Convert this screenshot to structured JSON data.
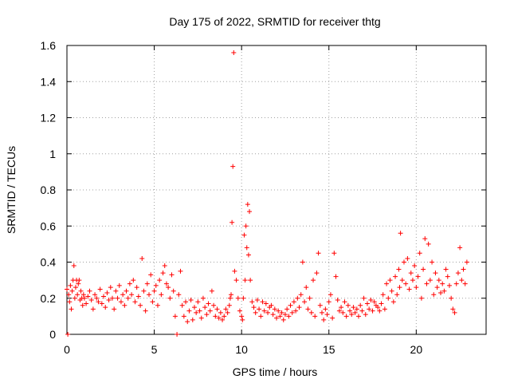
{
  "chart_data": {
    "type": "scatter",
    "title": "Day 175 of 2022, SRMTID for receiver thtg",
    "xlabel": "GPS time / hours",
    "ylabel": "SRMTID / TECUs",
    "xlim": [
      0,
      24
    ],
    "ylim": [
      0,
      1.6
    ],
    "xticks": [
      {
        "value": 0,
        "label": "0"
      },
      {
        "value": 5,
        "label": "5"
      },
      {
        "value": 10,
        "label": "10"
      },
      {
        "value": 15,
        "label": "15"
      },
      {
        "value": 20,
        "label": "20"
      }
    ],
    "yticks": [
      {
        "value": 0,
        "label": "0"
      },
      {
        "value": 0.2,
        "label": "0.2"
      },
      {
        "value": 0.4,
        "label": "0.4"
      },
      {
        "value": 0.6,
        "label": "0.6"
      },
      {
        "value": 0.8,
        "label": "0.8"
      },
      {
        "value": 1.0,
        "label": "1"
      },
      {
        "value": 1.2,
        "label": "1.2"
      },
      {
        "value": 1.4,
        "label": "1.4"
      },
      {
        "value": 1.6,
        "label": "1.6"
      }
    ],
    "grid": true,
    "marker": "+",
    "series": [
      {
        "name": "SRMTID",
        "color": "#ff0000",
        "x": [
          0.0,
          0.05,
          0.1,
          0.15,
          0.2,
          0.25,
          0.3,
          0.35,
          0.4,
          0.45,
          0.5,
          0.55,
          0.6,
          0.65,
          0.7,
          0.75,
          0.8,
          0.85,
          0.9,
          0.95,
          1.0,
          1.1,
          1.2,
          1.3,
          1.4,
          1.5,
          1.6,
          1.7,
          1.8,
          1.9,
          2.0,
          2.1,
          2.2,
          2.3,
          2.4,
          2.5,
          2.6,
          2.7,
          2.8,
          2.9,
          3.0,
          3.1,
          3.2,
          3.3,
          3.4,
          3.5,
          3.6,
          3.7,
          3.8,
          3.9,
          4.0,
          4.1,
          4.2,
          4.3,
          4.4,
          4.5,
          4.6,
          4.7,
          4.8,
          4.9,
          5.0,
          5.1,
          5.2,
          5.3,
          5.4,
          5.5,
          5.6,
          5.7,
          5.8,
          5.9,
          6.0,
          6.1,
          6.2,
          6.3,
          6.4,
          6.5,
          6.6,
          6.7,
          6.8,
          6.9,
          7.0,
          7.1,
          7.2,
          7.3,
          7.4,
          7.5,
          7.6,
          7.7,
          7.8,
          7.9,
          8.0,
          8.1,
          8.2,
          8.3,
          8.4,
          8.5,
          8.6,
          8.7,
          8.8,
          8.9,
          9.0,
          9.1,
          9.2,
          9.3,
          9.35,
          9.4,
          9.45,
          9.5,
          9.55,
          9.6,
          9.7,
          9.8,
          9.9,
          10.0,
          10.05,
          10.1,
          10.15,
          10.2,
          10.25,
          10.3,
          10.35,
          10.4,
          10.45,
          10.5,
          10.6,
          10.7,
          10.8,
          10.9,
          11.0,
          11.1,
          11.2,
          11.3,
          11.4,
          11.5,
          11.6,
          11.7,
          11.8,
          11.9,
          12.0,
          12.1,
          12.2,
          12.3,
          12.4,
          12.5,
          12.6,
          12.7,
          12.8,
          12.9,
          13.0,
          13.1,
          13.2,
          13.3,
          13.4,
          13.5,
          13.6,
          13.7,
          13.8,
          13.9,
          14.0,
          14.1,
          14.2,
          14.3,
          14.4,
          14.5,
          14.6,
          14.7,
          14.8,
          14.9,
          15.0,
          15.1,
          15.2,
          15.3,
          15.4,
          15.5,
          15.6,
          15.7,
          15.8,
          15.9,
          16.0,
          16.1,
          16.2,
          16.3,
          16.4,
          16.5,
          16.6,
          16.7,
          16.8,
          16.9,
          17.0,
          17.1,
          17.2,
          17.3,
          17.4,
          17.5,
          17.6,
          17.7,
          17.8,
          17.9,
          18.0,
          18.1,
          18.2,
          18.3,
          18.4,
          18.5,
          18.6,
          18.7,
          18.8,
          18.9,
          19.0,
          19.05,
          19.1,
          19.2,
          19.3,
          19.4,
          19.5,
          19.6,
          19.7,
          19.8,
          19.9,
          20.0,
          20.1,
          20.2,
          20.3,
          20.4,
          20.5,
          20.6,
          20.7,
          20.8,
          20.9,
          21.0,
          21.1,
          21.2,
          21.3,
          21.4,
          21.5,
          21.6,
          21.7,
          21.8,
          21.9,
          22.0,
          22.1,
          22.2,
          22.3,
          22.4,
          22.5,
          22.6,
          22.7,
          22.8,
          22.9
        ],
        "y": [
          0.25,
          0.0,
          0.22,
          0.18,
          0.27,
          0.14,
          0.24,
          0.3,
          0.38,
          0.2,
          0.26,
          0.3,
          0.22,
          0.28,
          0.3,
          0.19,
          0.24,
          0.2,
          0.16,
          0.22,
          0.2,
          0.17,
          0.21,
          0.24,
          0.19,
          0.14,
          0.22,
          0.2,
          0.18,
          0.25,
          0.17,
          0.21,
          0.15,
          0.23,
          0.19,
          0.26,
          0.2,
          0.14,
          0.24,
          0.2,
          0.27,
          0.18,
          0.22,
          0.16,
          0.24,
          0.2,
          0.28,
          0.22,
          0.3,
          0.18,
          0.26,
          0.21,
          0.16,
          0.42,
          0.24,
          0.13,
          0.28,
          0.22,
          0.33,
          0.18,
          0.24,
          0.27,
          0.16,
          0.3,
          0.22,
          0.34,
          0.38,
          0.28,
          0.26,
          0.2,
          0.33,
          0.24,
          0.1,
          0.0,
          0.22,
          0.35,
          0.16,
          0.1,
          0.18,
          0.07,
          0.13,
          0.19,
          0.08,
          0.15,
          0.12,
          0.18,
          0.13,
          0.09,
          0.2,
          0.15,
          0.11,
          0.17,
          0.13,
          0.24,
          0.16,
          0.1,
          0.14,
          0.09,
          0.12,
          0.08,
          0.1,
          0.14,
          0.12,
          0.16,
          0.2,
          0.22,
          0.62,
          0.93,
          1.56,
          0.35,
          0.3,
          0.2,
          0.13,
          0.1,
          0.08,
          0.2,
          0.55,
          0.3,
          0.6,
          0.48,
          0.72,
          0.44,
          0.68,
          0.3,
          0.18,
          0.15,
          0.12,
          0.19,
          0.14,
          0.1,
          0.18,
          0.13,
          0.17,
          0.12,
          0.15,
          0.16,
          0.11,
          0.14,
          0.09,
          0.13,
          0.1,
          0.12,
          0.08,
          0.11,
          0.14,
          0.1,
          0.16,
          0.12,
          0.18,
          0.13,
          0.2,
          0.15,
          0.22,
          0.4,
          0.18,
          0.26,
          0.14,
          0.2,
          0.12,
          0.3,
          0.1,
          0.34,
          0.45,
          0.16,
          0.12,
          0.08,
          0.14,
          0.11,
          0.18,
          0.22,
          0.09,
          0.45,
          0.32,
          0.19,
          0.13,
          0.15,
          0.12,
          0.18,
          0.1,
          0.16,
          0.13,
          0.11,
          0.15,
          0.12,
          0.14,
          0.1,
          0.16,
          0.13,
          0.2,
          0.11,
          0.17,
          0.14,
          0.19,
          0.13,
          0.18,
          0.16,
          0.15,
          0.13,
          0.17,
          0.22,
          0.14,
          0.28,
          0.2,
          0.3,
          0.24,
          0.18,
          0.32,
          0.22,
          0.36,
          0.26,
          0.56,
          0.3,
          0.4,
          0.28,
          0.42,
          0.25,
          0.34,
          0.3,
          0.38,
          0.26,
          0.32,
          0.45,
          0.2,
          0.36,
          0.53,
          0.28,
          0.5,
          0.3,
          0.4,
          0.22,
          0.34,
          0.26,
          0.3,
          0.23,
          0.28,
          0.24,
          0.36,
          0.32,
          0.27,
          0.2,
          0.14,
          0.12,
          0.28,
          0.34,
          0.48,
          0.3,
          0.36,
          0.28,
          0.4
        ]
      }
    ]
  }
}
